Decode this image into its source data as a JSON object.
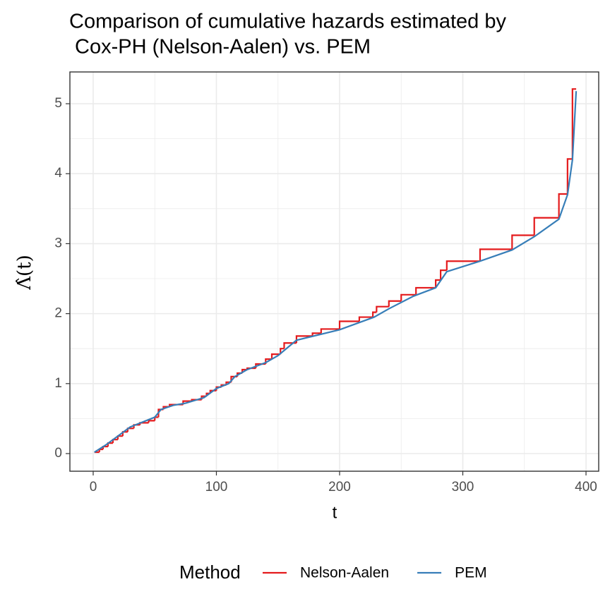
{
  "chart_data": {
    "type": "line",
    "title": [
      "Comparison of cumulative hazards estimated by",
      " Cox-PH (Nelson-Aalen) vs. PEM"
    ],
    "x_label": "t",
    "y_label": "Λ̂(t)",
    "xlim": [
      -18.9,
      410.3
    ],
    "xticks": [
      0,
      100,
      200,
      300,
      400
    ],
    "x_minor_grid": [
      50,
      150,
      250,
      350
    ],
    "ylim": [
      -0.252,
      5.454
    ],
    "yticks": [
      0,
      1,
      2,
      3,
      4,
      5
    ],
    "y_minor_grid": [
      0.5,
      1.5,
      2.5,
      3.5,
      4.5
    ],
    "grid": true,
    "legend_title": "Method",
    "legend_position": "bottom",
    "series": [
      {
        "name": "Nelson-Aalen",
        "color": "#e41a1c",
        "step": "post",
        "x": [
          1,
          5,
          8,
          12,
          16,
          20,
          24,
          28,
          33,
          38,
          45,
          50,
          53,
          57,
          62,
          73,
          80,
          88,
          92,
          95,
          100,
          104,
          108,
          112,
          117,
          121,
          125,
          132,
          140,
          145,
          152,
          155,
          165,
          178,
          185,
          200,
          216,
          227,
          230,
          240,
          250,
          262,
          278,
          282,
          287,
          314,
          340,
          358,
          378,
          385,
          389,
          392
        ],
        "values": [
          0.02,
          0.06,
          0.1,
          0.15,
          0.2,
          0.25,
          0.31,
          0.36,
          0.41,
          0.44,
          0.47,
          0.52,
          0.63,
          0.67,
          0.7,
          0.75,
          0.77,
          0.82,
          0.86,
          0.9,
          0.95,
          0.98,
          1.02,
          1.1,
          1.15,
          1.2,
          1.22,
          1.28,
          1.35,
          1.42,
          1.5,
          1.58,
          1.68,
          1.72,
          1.78,
          1.89,
          1.95,
          2.02,
          2.1,
          2.18,
          2.27,
          2.37,
          2.48,
          2.62,
          2.75,
          2.92,
          3.12,
          3.37,
          3.71,
          4.21,
          5.21,
          5.21
        ]
      },
      {
        "name": "PEM",
        "color": "#377eb8",
        "x": [
          1,
          10,
          20,
          30,
          40,
          50,
          55,
          65,
          75,
          90,
          100,
          110,
          115,
          125,
          140,
          150,
          165,
          200,
          228,
          240,
          260,
          278,
          287,
          314,
          340,
          358,
          378,
          385,
          389,
          392
        ],
        "values": [
          0.02,
          0.12,
          0.25,
          0.38,
          0.45,
          0.52,
          0.63,
          0.69,
          0.72,
          0.8,
          0.93,
          1.0,
          1.1,
          1.2,
          1.3,
          1.4,
          1.62,
          1.77,
          1.95,
          2.07,
          2.25,
          2.37,
          2.6,
          2.75,
          2.91,
          3.1,
          3.35,
          3.7,
          4.2,
          5.18
        ]
      }
    ]
  }
}
